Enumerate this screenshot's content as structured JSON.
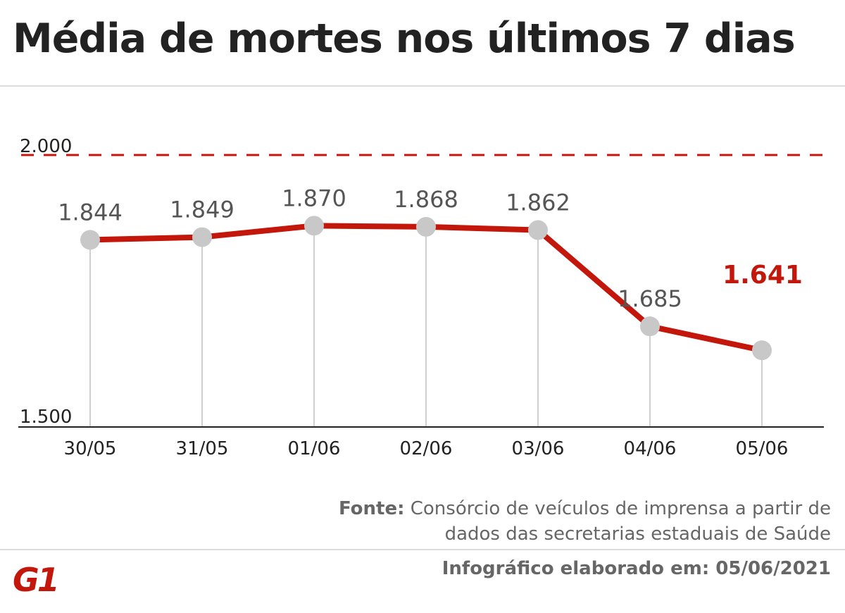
{
  "chart_data": {
    "type": "line",
    "title": "Média de mortes nos últimos 7 dias",
    "categories": [
      "30/05",
      "31/05",
      "01/06",
      "02/06",
      "03/06",
      "04/06",
      "05/06"
    ],
    "values": [
      1844,
      1849,
      1870,
      1868,
      1862,
      1685,
      1641
    ],
    "value_labels": [
      "1.844",
      "1.849",
      "1.870",
      "1.868",
      "1.862",
      "1.685",
      "1.641"
    ],
    "highlight_index": 6,
    "ylim": [
      1500,
      2000
    ],
    "y_tick_labels": [
      "1.500",
      "2.000"
    ],
    "reference_line": {
      "value": 2000,
      "style": "dashed"
    },
    "colors": {
      "line": "#c4170c",
      "marker": "#c8c8c8",
      "highlight": "#c4170c"
    }
  },
  "source": {
    "label": "Fonte:",
    "text": "Consórcio de veículos de imprensa a partir de dados das secretarias estaduais de Saúde"
  },
  "footer": "Infográfico elaborado em: 05/06/2021",
  "logo": "G1"
}
